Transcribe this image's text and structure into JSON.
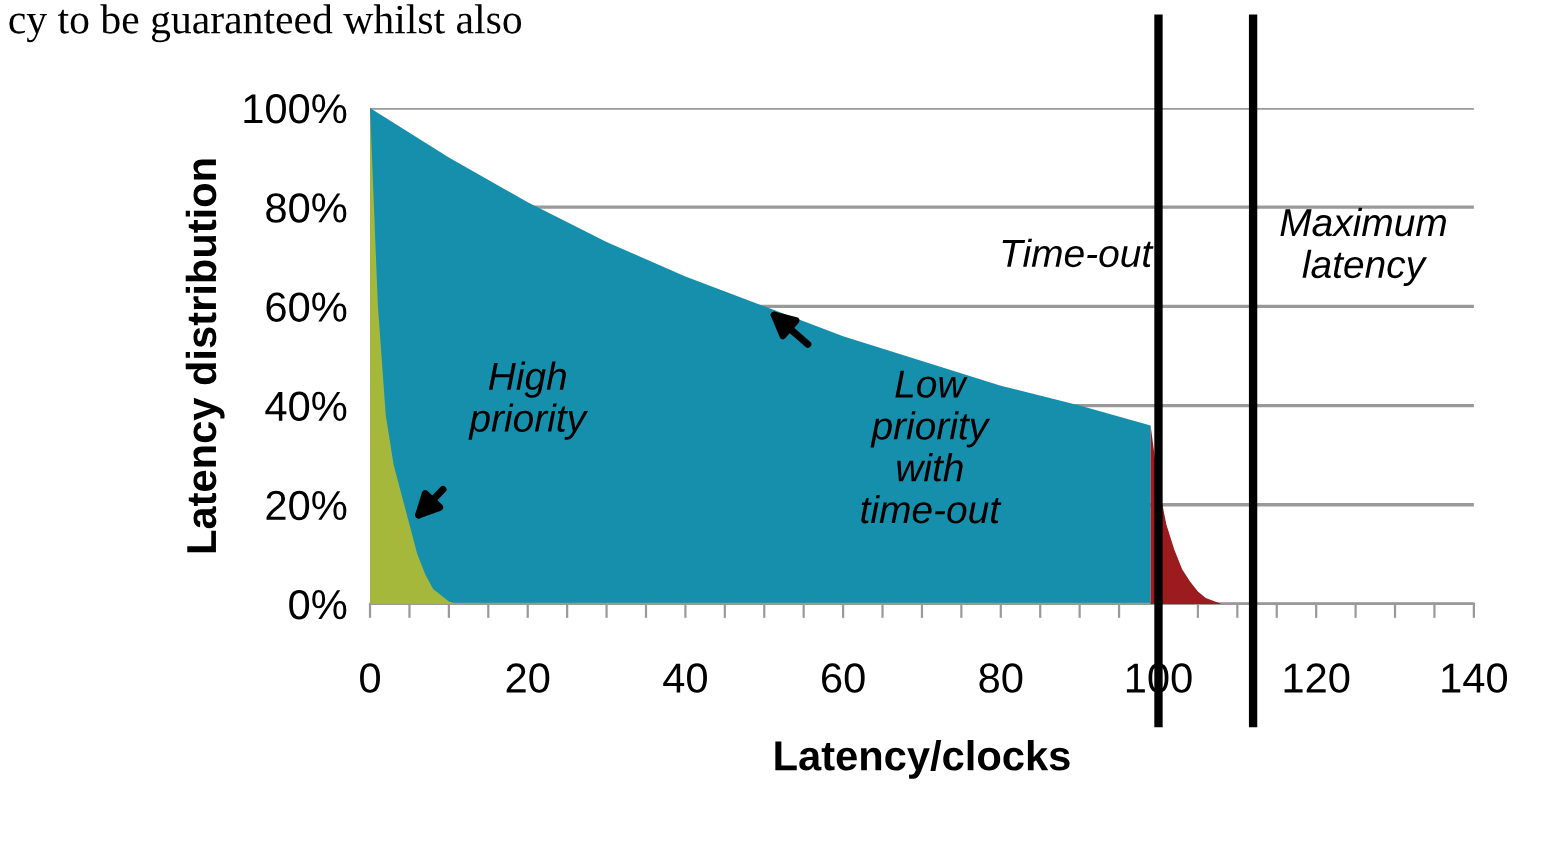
{
  "chart_data": {
    "type": "area",
    "xlabel": "Latency/clocks",
    "ylabel": "Latency distribution",
    "xlim": [
      0,
      140
    ],
    "ylim": [
      0,
      100
    ],
    "xticks": [
      0,
      {
        "value": 5,
        "label": null
      },
      {
        "value": 10,
        "label": null
      },
      {
        "value": 15,
        "label": null
      },
      20,
      {
        "value": 25,
        "label": null
      },
      {
        "value": 30,
        "label": null
      },
      {
        "value": 35,
        "label": null
      },
      40,
      {
        "value": 45,
        "label": null
      },
      {
        "value": 50,
        "label": null
      },
      {
        "value": 55,
        "label": null
      },
      60,
      {
        "value": 65,
        "label": null
      },
      {
        "value": 70,
        "label": null
      },
      {
        "value": 75,
        "label": null
      },
      80,
      {
        "value": 85,
        "label": null
      },
      {
        "value": 90,
        "label": null
      },
      {
        "value": 95,
        "label": null
      },
      100,
      {
        "value": 105,
        "label": null
      },
      {
        "value": 110,
        "label": null
      },
      {
        "value": 115,
        "label": null
      },
      120,
      {
        "value": 125,
        "label": null
      },
      {
        "value": 130,
        "label": null
      },
      {
        "value": 135,
        "label": null
      },
      140
    ],
    "yticks": [
      {
        "value": 0,
        "label": "0%"
      },
      {
        "value": 20,
        "label": "20%"
      },
      {
        "value": 40,
        "label": "40%"
      },
      {
        "value": 60,
        "label": "60%"
      },
      {
        "value": 80,
        "label": "80%"
      },
      {
        "value": 100,
        "label": "100%"
      }
    ],
    "grid": "y",
    "legend": false,
    "series": [
      {
        "color": "#168fac",
        "x": [
          0,
          10,
          20,
          30,
          40,
          50,
          60,
          70,
          80,
          90,
          99,
          99
        ],
        "values": [
          100,
          90,
          81,
          73,
          66,
          60,
          54,
          49,
          44,
          40,
          36,
          0
        ]
      },
      {
        "color": "#9b1b1e",
        "x": [
          99,
          100,
          101,
          102,
          103,
          104,
          105,
          106,
          108
        ],
        "values": [
          36,
          24,
          16,
          11,
          7,
          4.5,
          2.5,
          1.2,
          0
        ]
      },
      {
        "color": "#a6b83b",
        "x": [
          0,
          1,
          2,
          3,
          4,
          5,
          6,
          7,
          8,
          10,
          11
        ],
        "values": [
          100,
          60,
          38,
          28,
          22,
          16,
          10,
          6,
          3,
          0.5,
          0
        ]
      }
    ],
    "ref_lines": [
      {
        "axis": "x",
        "value": 100,
        "label": "Time-out",
        "color": "#000000"
      },
      {
        "axis": "x",
        "value": 112,
        "label": "Maximum\nlatency",
        "color": "#000000"
      }
    ],
    "annotations": [
      {
        "text": "High\npriority",
        "x": 5,
        "y": 16
      },
      {
        "text": "Low\npriority\nwith\ntime-out",
        "x": 50,
        "y": 60
      },
      "cy to be guaranteed whilst also"
    ]
  }
}
